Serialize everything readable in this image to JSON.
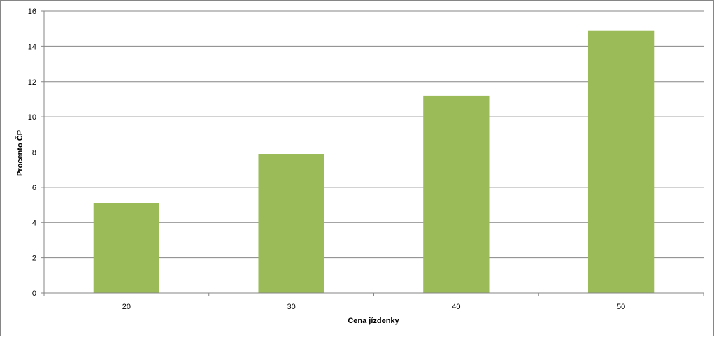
{
  "chart_data": {
    "type": "bar",
    "categories": [
      "20",
      "30",
      "40",
      "50"
    ],
    "values": [
      5.1,
      7.9,
      11.2,
      14.9
    ],
    "title": "",
    "xlabel": "Cena jízdenky",
    "ylabel": "Procento ČP",
    "ylim": [
      0,
      16
    ],
    "yticks": [
      "0",
      "2",
      "4",
      "6",
      "8",
      "10",
      "12",
      "14",
      "16"
    ],
    "grid": true,
    "legend": "none",
    "bar_color": "#9BBB59"
  }
}
